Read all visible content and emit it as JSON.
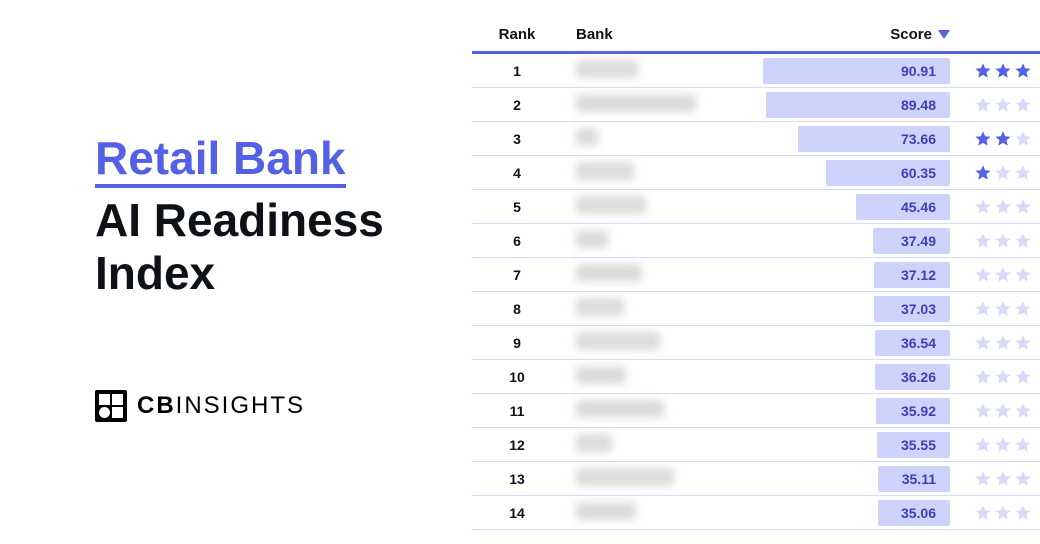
{
  "title": {
    "accent": "Retail Bank",
    "rest_line1": "AI Readiness",
    "rest_line2": "Index"
  },
  "logo": {
    "bold": "CB",
    "rest": "INSIGHTS"
  },
  "table": {
    "columns": {
      "rank": "Rank",
      "bank": "Bank",
      "score": "Score"
    },
    "score_max": 100,
    "colors": {
      "bar_bg": "#cdd3fa",
      "header_underline": "#5461e6",
      "row_divider": "#d7dbf7",
      "score_text": "#3a40b8",
      "star_filled": "#5461e6",
      "star_empty": "#d7dbf7"
    },
    "rows": [
      {
        "rank": 1,
        "blur_width": 62,
        "score": 90.91,
        "stars_filled": 3
      },
      {
        "rank": 2,
        "blur_width": 120,
        "score": 89.48,
        "stars_filled": 0
      },
      {
        "rank": 3,
        "blur_width": 22,
        "score": 73.66,
        "stars_filled": 2
      },
      {
        "rank": 4,
        "blur_width": 58,
        "score": 60.35,
        "stars_filled": 1
      },
      {
        "rank": 5,
        "blur_width": 70,
        "score": 45.46,
        "stars_filled": 0
      },
      {
        "rank": 6,
        "blur_width": 32,
        "score": 37.49,
        "stars_filled": 0
      },
      {
        "rank": 7,
        "blur_width": 66,
        "score": 37.12,
        "stars_filled": 0
      },
      {
        "rank": 8,
        "blur_width": 48,
        "score": 37.03,
        "stars_filled": 0
      },
      {
        "rank": 9,
        "blur_width": 84,
        "score": 36.54,
        "stars_filled": 0
      },
      {
        "rank": 10,
        "blur_width": 50,
        "score": 36.26,
        "stars_filled": 0
      },
      {
        "rank": 11,
        "blur_width": 88,
        "score": 35.92,
        "stars_filled": 0
      },
      {
        "rank": 12,
        "blur_width": 36,
        "score": 35.55,
        "stars_filled": 0
      },
      {
        "rank": 13,
        "blur_width": 98,
        "score": 35.11,
        "stars_filled": 0
      },
      {
        "rank": 14,
        "blur_width": 60,
        "score": 35.06,
        "stars_filled": 0
      }
    ]
  }
}
